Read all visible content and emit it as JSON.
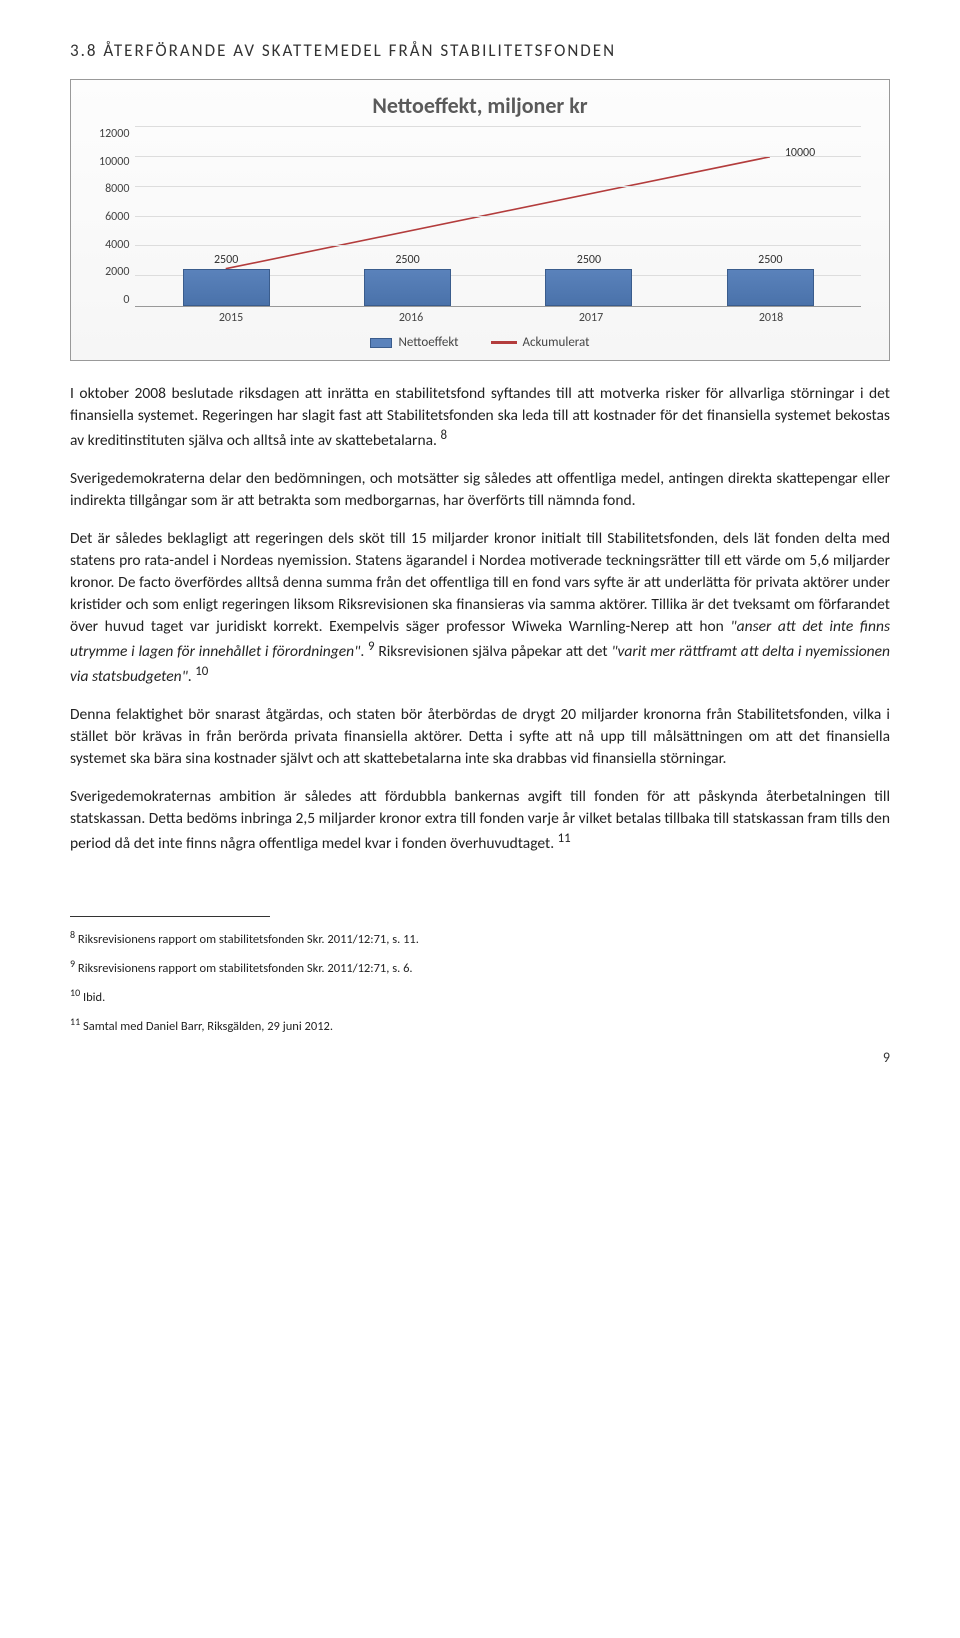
{
  "heading": "3.8 ÅTERFÖRANDE AV SKATTEMEDEL FRÅN STABILITETSFONDEN",
  "chart": {
    "type": "bar+line",
    "title": "Nettoeffekt, miljoner kr",
    "y_ticks": [
      "12000",
      "10000",
      "8000",
      "6000",
      "4000",
      "2000",
      "0"
    ],
    "y_max": 12000,
    "categories": [
      "2015",
      "2016",
      "2017",
      "2018"
    ],
    "bar_values": [
      2500,
      2500,
      2500,
      2500
    ],
    "bar_labels": [
      "2500",
      "2500",
      "2500",
      "2500"
    ],
    "line_end_value": 10000,
    "line_end_label": "10000",
    "bar_color": "#5a82bb",
    "bar_border": "#3a5c8c",
    "line_color": "#b33c3c",
    "grid_color": "#dddddd",
    "background": "#fbfbfb",
    "bar_width_pct": 12,
    "legend": {
      "bar": "Nettoeffekt",
      "line": "Ackumulerat"
    }
  },
  "paragraphs": {
    "p1": "I oktober 2008 beslutade riksdagen att inrätta en stabilitetsfond syftandes till att motverka risker för allvarliga störningar i det finansiella systemet. Regeringen har slagit fast att Stabilitetsfonden ska leda till att kostnader för det finansiella systemet bekostas av kreditinstituten själva och alltså inte av skattebetalarna. ",
    "p1_sup": "8",
    "p2": "Sverigedemokraterna delar den bedömningen, och motsätter sig således att offentliga medel, antingen direkta skattepengar eller indirekta tillgångar som är att betrakta som medborgarnas, har överförts till nämnda fond.",
    "p3a": "Det är således beklagligt att regeringen dels sköt till 15 miljarder kronor initialt till Stabilitetsfonden, dels lät fonden delta med statens pro rata-andel i Nordeas nyemission. Statens ägarandel i Nordea motiverade teckningsrätter till ett värde om 5,6 miljarder kronor. De facto överfördes alltså denna summa från det offentliga till en fond vars syfte är att underlätta för privata aktörer under kristider och som enligt regeringen liksom Riksrevisionen ska finansieras via samma aktörer. Tillika är det tveksamt om förfarandet över huvud taget var juridiskt korrekt. Exempelvis säger professor Wiweka Warnling-Nerep att hon ",
    "p3i1": "\"anser att det inte finns utrymme i lagen för innehållet i förordningen\"",
    "p3b": ". ",
    "p3_sup1": "9",
    "p3c": " Riksrevisionen själva påpekar att det ",
    "p3i2": "\"varit mer rättframt att delta i nyemissionen via statsbudgeten\"",
    "p3d": ". ",
    "p3_sup2": "10",
    "p4": "Denna felaktighet bör snarast åtgärdas, och staten bör återbördas de drygt 20 miljarder kronorna från Stabilitetsfonden, vilka i stället bör krävas in från berörda privata finansiella aktörer. Detta i syfte att nå upp till målsättningen om att det finansiella systemet ska bära sina kostnader självt och att skattebetalarna inte ska drabbas vid finansiella störningar.",
    "p5a": "Sverigedemokraternas ambition är således att fördubbla bankernas avgift till fonden för att påskynda återbetalningen till statskassan. Detta bedöms inbringa 2,5 miljarder kronor extra till fonden varje år vilket betalas tillbaka till statskassan fram tills den period då det inte finns några offentliga medel kvar i fonden överhuvudtaget. ",
    "p5_sup": "11"
  },
  "footnotes": {
    "f8": "Riksrevisionens rapport om stabilitetsfonden Skr. 2011/12:71, s. 11.",
    "f9": "Riksrevisionens rapport om stabilitetsfonden Skr. 2011/12:71, s. 6.",
    "f10": "Ibid.",
    "f11": "Samtal med Daniel Barr, Riksgälden, 29 juni 2012."
  },
  "page_number": "9"
}
